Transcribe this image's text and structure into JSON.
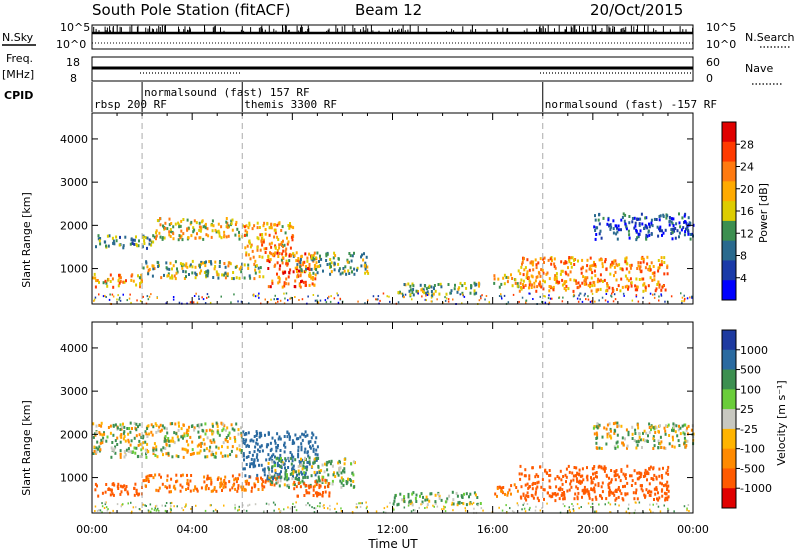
{
  "header": {
    "station": "South Pole Station (fitACF)",
    "beam": "Beam 12",
    "date": "20/Oct/2015"
  },
  "panels": {
    "nsky": {
      "left_label": "N.Sky",
      "left_ticks": [
        "10^5",
        "10^0"
      ],
      "right_label": "N.Search",
      "right_ticks": [
        "10^5",
        "10^0"
      ]
    },
    "freq": {
      "left_label": "Freq.",
      "left_unit": "[MHz]",
      "left_ticks": [
        "18",
        "8"
      ],
      "right_label": "Nave",
      "right_ticks": [
        "60",
        "0"
      ]
    },
    "cpid": {
      "label": "CPID",
      "modes": [
        {
          "text": "rbsp 200 RF",
          "start_hour": 0
        },
        {
          "text": "normalsound (fast) 157 RF",
          "start_hour": 2
        },
        {
          "text": "themis 3300 RF",
          "start_hour": 6
        },
        {
          "text": "normalsound (fast) -157 RF",
          "start_hour": 18
        }
      ]
    }
  },
  "colorbars": {
    "power": {
      "label": "Power [dB]",
      "ticks": [
        "28",
        "24",
        "20",
        "16",
        "12",
        "8",
        "4"
      ],
      "colors": [
        "#e00000",
        "#ff3a00",
        "#ff7a10",
        "#ffaa00",
        "#ddcc00",
        "#3c8f50",
        "#2a6a8e",
        "#1a3aa8",
        "#0000ff"
      ]
    },
    "velocity": {
      "label": "Velocity [m s⁻¹]",
      "ticks": [
        "1000",
        "500",
        "100",
        "25",
        "-25",
        "-100",
        "-500",
        "-1000"
      ],
      "colors": [
        "#1e3aa0",
        "#2a6aa0",
        "#3c8f50",
        "#6acd3a",
        "#c8c8c0",
        "#ffb400",
        "#ff8a00",
        "#ff5a00",
        "#e00000"
      ]
    }
  },
  "chart_data": [
    {
      "type": "heatmap",
      "name": "power",
      "ylabel": "Slant Range [km]",
      "yticks": [
        1000,
        2000,
        3000,
        4000
      ],
      "ylim": [
        180,
        4600
      ],
      "xlim": [
        0,
        24
      ],
      "xticks": [
        "00:00",
        "04:00",
        "08:00",
        "12:00",
        "16:00",
        "20:00",
        "00:00"
      ],
      "colorbar": "Power [dB]",
      "echo_regions": [
        {
          "hours": [
            0,
            2.5
          ],
          "range_km": [
            1500,
            1800
          ],
          "value_db": 12
        },
        {
          "hours": [
            2.5,
            6
          ],
          "range_km": [
            1700,
            2200
          ],
          "value_db": 18
        },
        {
          "hours": [
            6,
            8
          ],
          "range_km": [
            1200,
            2100
          ],
          "value_db": 20
        },
        {
          "hours": [
            7,
            9
          ],
          "range_km": [
            600,
            1400
          ],
          "value_db": 24
        },
        {
          "hours": [
            0,
            2
          ],
          "range_km": [
            600,
            900
          ],
          "value_db": 20
        },
        {
          "hours": [
            2,
            7
          ],
          "range_km": [
            800,
            1200
          ],
          "value_db": 16
        },
        {
          "hours": [
            8,
            11
          ],
          "range_km": [
            900,
            1400
          ],
          "value_db": 14
        },
        {
          "hours": [
            12,
            15.5
          ],
          "range_km": [
            400,
            700
          ],
          "value_db": 14
        },
        {
          "hours": [
            16,
            17
          ],
          "range_km": [
            600,
            900
          ],
          "value_db": 18
        },
        {
          "hours": [
            17,
            23
          ],
          "range_km": [
            500,
            1300
          ],
          "value_db": 22
        },
        {
          "hours": [
            20,
            24
          ],
          "range_km": [
            1700,
            2300
          ],
          "value_db": 8
        }
      ]
    },
    {
      "type": "heatmap",
      "name": "velocity",
      "ylabel": "Slant Range [km]",
      "yticks": [
        1000,
        2000,
        3000,
        4000
      ],
      "ylim": [
        180,
        4600
      ],
      "xlim": [
        0,
        24
      ],
      "xticks": [
        "00:00",
        "04:00",
        "08:00",
        "12:00",
        "16:00",
        "20:00",
        "00:00"
      ],
      "xlabel": "Time UT",
      "colorbar": "Velocity [m s⁻¹]",
      "echo_regions": [
        {
          "hours": [
            0,
            6
          ],
          "range_km": [
            1500,
            2300
          ],
          "value_ms": 0
        },
        {
          "hours": [
            0,
            2
          ],
          "range_km": [
            600,
            900
          ],
          "value_ms": -500
        },
        {
          "hours": [
            2,
            7.5
          ],
          "range_km": [
            700,
            1100
          ],
          "value_ms": -300
        },
        {
          "hours": [
            6,
            9
          ],
          "range_km": [
            1000,
            2100
          ],
          "value_ms": 500
        },
        {
          "hours": [
            7,
            10.5
          ],
          "range_km": [
            800,
            1500
          ],
          "value_ms": 100
        },
        {
          "hours": [
            8,
            9.5
          ],
          "range_km": [
            600,
            1000
          ],
          "value_ms": -500
        },
        {
          "hours": [
            12,
            15.5
          ],
          "range_km": [
            400,
            700
          ],
          "value_ms": 100
        },
        {
          "hours": [
            16,
            17
          ],
          "range_km": [
            600,
            900
          ],
          "value_ms": -300
        },
        {
          "hours": [
            17,
            23
          ],
          "range_km": [
            500,
            1300
          ],
          "value_ms": -500
        },
        {
          "hours": [
            20,
            24
          ],
          "range_km": [
            1700,
            2300
          ],
          "value_ms": 0
        }
      ]
    }
  ],
  "xaxis": {
    "title": "Time UT"
  }
}
